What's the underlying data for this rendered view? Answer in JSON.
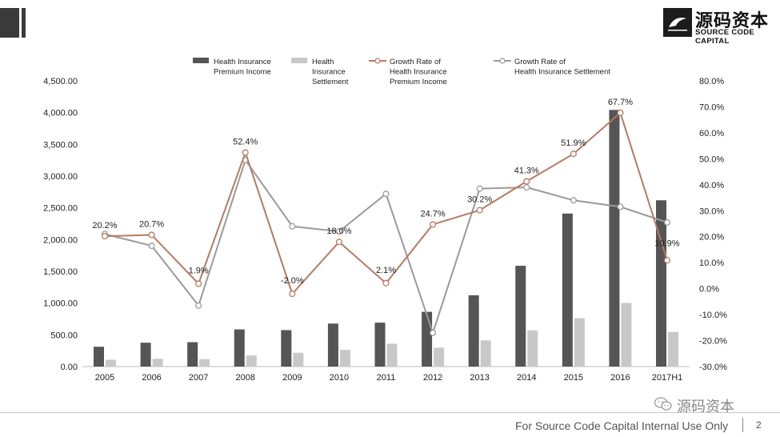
{
  "branding": {
    "logo_cn": "源码资本",
    "logo_en": "SOURCE CODE CAPITAL",
    "watermark": "源码资本"
  },
  "footer": {
    "text": "For Source Code Capital Internal Use Only",
    "page": "2"
  },
  "chart_data": {
    "type": "bar",
    "categories": [
      "2005",
      "2006",
      "2007",
      "2008",
      "2009",
      "2010",
      "2011",
      "2012",
      "2013",
      "2014",
      "2015",
      "2016",
      "2017H1"
    ],
    "left_axis": {
      "range": [
        0,
        4500
      ],
      "ticks": [
        "0.00",
        "500.00",
        "1,000.00",
        "1,500.00",
        "2,000.00",
        "2,500.00",
        "3,000.00",
        "3,500.00",
        "4,000.00",
        "4,500.00"
      ]
    },
    "right_axis": {
      "range": [
        -30,
        80
      ],
      "ticks": [
        "-30.0%",
        "-20.0%",
        "-10.0%",
        "0.0%",
        "10.0%",
        "20.0%",
        "30.0%",
        "40.0%",
        "50.0%",
        "60.0%",
        "70.0%",
        "80.0%"
      ]
    },
    "legend_position": "top-center",
    "series": [
      {
        "name": "Health Insurance Premium Income",
        "legend_lines": [
          "Health Insurance",
          "Premium Income"
        ],
        "type": "bar",
        "axis": "left",
        "color": "#555555",
        "values": [
          312,
          376,
          384,
          585,
          574,
          677,
          692,
          862,
          1123,
          1587,
          2410,
          4042,
          2619
        ]
      },
      {
        "name": "Health Insurance Settlement",
        "legend_lines": [
          "Health",
          "Insurance",
          "Settlement"
        ],
        "type": "bar",
        "axis": "left",
        "color": "#c8c8c8",
        "values": [
          107,
          122,
          117,
          175,
          217,
          264,
          360,
          298,
          412,
          571,
          763,
          1001,
          545
        ]
      },
      {
        "name": "Growth Rate of Health Insurance Premium Income",
        "legend_lines": [
          "Growth Rate of",
          "Health Insurance",
          "Premium Income"
        ],
        "type": "line",
        "axis": "right",
        "color": "#b87a62",
        "values": [
          20.2,
          20.7,
          1.9,
          52.4,
          -2.0,
          18.0,
          2.1,
          24.7,
          30.2,
          41.3,
          51.9,
          67.7,
          10.9
        ],
        "labels": [
          "20.2%",
          "20.7%",
          "1.9%",
          "52.4%",
          "-2.0%",
          "18.0%",
          "2.1%",
          "24.7%",
          "30.2%",
          "41.3%",
          "51.9%",
          "67.7%",
          "10.9%"
        ]
      },
      {
        "name": "Growth Rate of Health Insurance Settlement",
        "legend_lines": [
          "Growth Rate of",
          "Health Insurance Settlement"
        ],
        "type": "line",
        "axis": "right",
        "color": "#9a9a9a",
        "values": [
          21.0,
          16.5,
          -6.5,
          49.5,
          24.0,
          22.0,
          36.5,
          -17.0,
          38.5,
          39.0,
          34.0,
          31.5,
          25.5
        ]
      }
    ]
  }
}
